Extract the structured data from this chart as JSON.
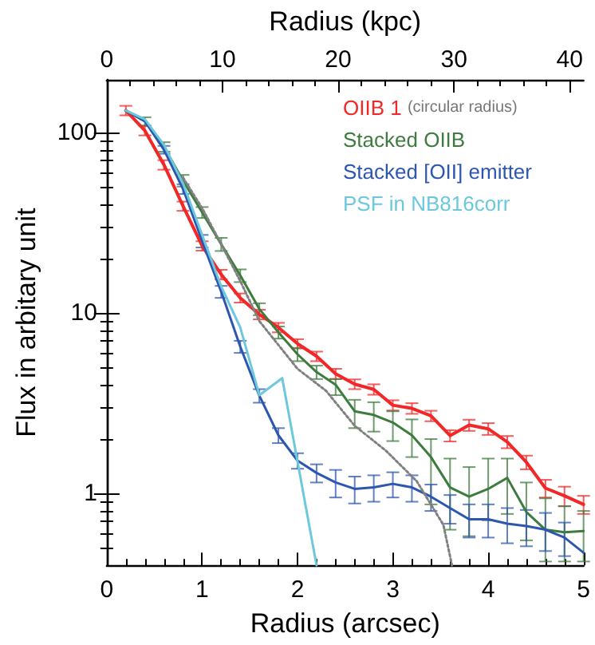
{
  "chart_data": {
    "type": "line",
    "xlabel": "Radius (arcsec)",
    "x2label": "Radius (kpc)",
    "ylabel": "Flux in arbitary unit",
    "log": "y",
    "xlim": [
      0,
      5
    ],
    "xticks": [
      0,
      1,
      2,
      3,
      4,
      5
    ],
    "x2lim": [
      0,
      41.2
    ],
    "x2ticks": [
      0,
      10,
      20,
      30,
      40
    ],
    "ylim": [
      0.4,
      195
    ],
    "yticks": [
      1,
      10,
      100
    ],
    "legend": "top right",
    "grid": false,
    "marker": "none",
    "annotations": [
      "(circular radius)"
    ],
    "x": [
      0.2,
      0.4,
      0.6,
      0.8,
      1.0,
      1.2,
      1.4,
      1.6,
      1.8,
      2.0,
      2.2,
      2.4,
      2.6,
      2.8,
      3.0,
      3.2,
      3.4,
      3.6,
      3.8,
      4.0,
      4.2,
      4.4,
      4.6,
      4.8,
      5.0
    ],
    "series": [
      {
        "name": "OIIB 1",
        "color": "#f22828",
        "values": [
          132,
          102,
          66,
          39,
          23.5,
          16.3,
          12.1,
          9.8,
          8.3,
          6.75,
          5.75,
          4.6,
          4.03,
          3.77,
          3.08,
          2.96,
          2.69,
          2.09,
          2.39,
          2.28,
          1.93,
          1.49,
          1.07,
          0.97,
          0.87
        ],
        "errors": [
          8,
          6,
          4,
          2.3,
          1.4,
          1,
          0.7,
          0.6,
          0.5,
          0.4,
          0.35,
          0.3,
          0.25,
          0.25,
          0.2,
          0.2,
          0.18,
          0.15,
          0.17,
          0.17,
          0.15,
          0.13,
          0.12,
          0.12,
          0.1
        ]
      },
      {
        "name": "Stacked OIIB",
        "color": "#3e7b3e",
        "values": [
          132,
          115,
          83,
          54,
          36,
          24,
          16.1,
          10.5,
          7.8,
          5.9,
          4.7,
          4.0,
          2.85,
          2.72,
          2.47,
          2.1,
          1.59,
          1.08,
          0.96,
          1.06,
          1.22,
          0.79,
          0.63,
          0.61,
          0.62
        ],
        "errors": [
          null,
          6,
          5,
          4,
          2.5,
          2,
          1.3,
          0.8,
          0.6,
          0.5,
          0.4,
          [
            3.5,
            4.3
          ],
          [
            2.3,
            3.3
          ],
          [
            2.2,
            3.2
          ],
          [
            1.95,
            2.85
          ],
          [
            1.59,
            2.57
          ],
          [
            0.87,
            2.0
          ],
          [
            0.63,
            1.56
          ],
          [
            0.58,
            1.4
          ],
          [
            0.71,
            1.56
          ],
          [
            0.77,
            1.56
          ],
          [
            0.55,
            1.15
          ],
          [
            0.42,
            0.94
          ],
          [
            0.42,
            0.85
          ],
          [
            0.42,
            0.8
          ]
        ]
      },
      {
        "name": "Stacked [OII] emitter",
        "color": "#2d56b0",
        "values": [
          132,
          115,
          80,
          48.5,
          25,
          13.1,
          6.5,
          3.48,
          2.1,
          1.52,
          1.3,
          1.15,
          1.06,
          1.08,
          1.13,
          1.08,
          0.96,
          0.83,
          0.72,
          0.72,
          0.68,
          0.66,
          0.63,
          0.57,
          0.47
        ],
        "errors": [
          null,
          null,
          4,
          3,
          2,
          1,
          0.5,
          0.3,
          0.2,
          0.15,
          0.15,
          0.2,
          0.18,
          0.18,
          0.18,
          0.18,
          0.16,
          0.15,
          0.15,
          0.15,
          0.15,
          0.15,
          0.15,
          0.12,
          null
        ]
      },
      {
        "name": "PSF in NB816corr",
        "color": "#6cc8dc",
        "x": [
          0.2,
          0.4,
          0.6,
          0.8,
          1.0,
          1.2,
          1.4,
          1.6,
          1.84,
          2.2
        ],
        "values": [
          132,
          118,
          85,
          52,
          27,
          14,
          8.3,
          3.5,
          4.35,
          0.4
        ]
      },
      {
        "color": "#808080",
        "line_style": "dotted",
        "x": [
          0.8,
          1.0,
          1.2,
          1.4,
          1.6,
          2.0,
          2.3,
          2.6,
          2.93,
          3.25,
          3.53,
          3.62
        ],
        "values": [
          56,
          38,
          24,
          15,
          9,
          4.9,
          3.7,
          2.37,
          1.72,
          1.17,
          0.67,
          0.4
        ]
      }
    ]
  }
}
